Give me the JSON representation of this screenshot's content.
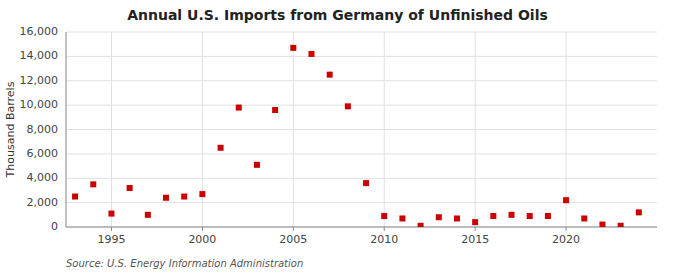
{
  "chart_data": {
    "type": "scatter",
    "title": "Annual U.S. Imports from Germany of Unfinished Oils",
    "ylabel": "Thousand Barrels",
    "annotations": [
      "Source: U.S. Energy Information Administration"
    ],
    "color": "#cc0000",
    "marker": "square",
    "grid": true,
    "x": [
      1993,
      1994,
      1995,
      1996,
      1997,
      1998,
      1999,
      2000,
      2001,
      2002,
      2003,
      2004,
      2005,
      2006,
      2007,
      2008,
      2009,
      2010,
      2011,
      2012,
      2013,
      2014,
      2015,
      2016,
      2017,
      2018,
      2019,
      2020,
      2021,
      2022,
      2023,
      2024
    ],
    "values": [
      2500,
      3500,
      1100,
      3200,
      1000,
      2400,
      2500,
      2700,
      6500,
      9800,
      5100,
      9600,
      14700,
      14200,
      12500,
      9900,
      3600,
      900,
      700,
      100,
      800,
      700,
      400,
      900,
      1000,
      900,
      900,
      2200,
      700,
      200,
      100,
      1200
    ],
    "xlim": [
      1992.5,
      2025
    ],
    "xticks": [
      1995,
      2000,
      2005,
      2010,
      2015,
      2020
    ],
    "ylim": [
      0,
      16000
    ],
    "yticks": [
      0,
      {
        "value": 2000,
        "label": "2,000"
      },
      {
        "value": 4000,
        "label": "4,000"
      },
      {
        "value": 6000,
        "label": "6,000"
      },
      {
        "value": 8000,
        "label": "8,000"
      },
      {
        "value": 10000,
        "label": "10,000"
      },
      {
        "value": 12000,
        "label": "12,000"
      },
      {
        "value": 14000,
        "label": "14,000"
      },
      {
        "value": 16000,
        "label": "16,000"
      }
    ]
  }
}
